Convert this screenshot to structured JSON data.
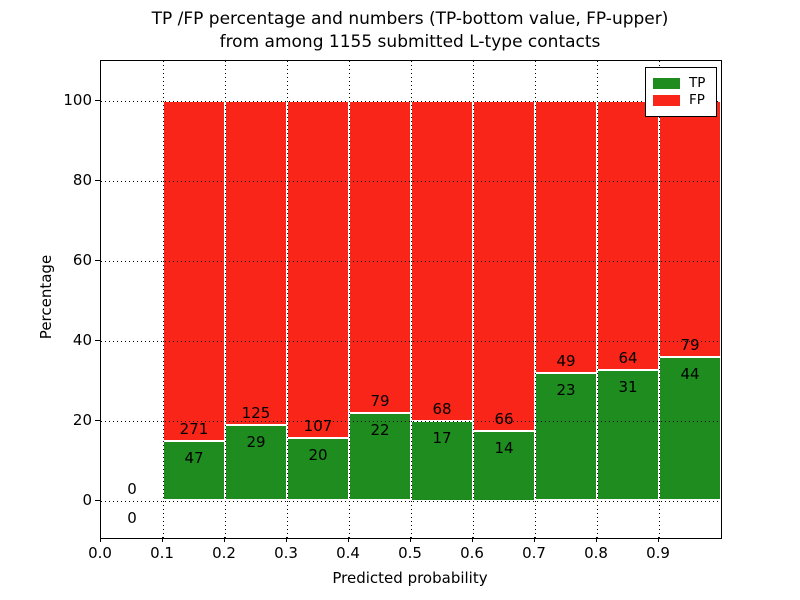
{
  "title": {
    "line1": "TP /FP percentage and numbers (TP-bottom value, FP-upper)",
    "line2": "from among 1155 submitted L-type contacts"
  },
  "axes": {
    "xlabel": "Predicted probability",
    "ylabel": "Percentage",
    "xtick_labels": [
      "0.0",
      "0.1",
      "0.2",
      "0.3",
      "0.4",
      "0.5",
      "0.6",
      "0.7",
      "0.8",
      "0.9"
    ],
    "ytick_labels": [
      "0",
      "20",
      "40",
      "60",
      "80",
      "100"
    ]
  },
  "legend": {
    "items": [
      {
        "label": "TP",
        "color": "#1e8c1e"
      },
      {
        "label": "FP",
        "color": "#f92518"
      }
    ],
    "position": "upper right"
  },
  "colors": {
    "tp": "#1e8c1e",
    "fp": "#f92518",
    "grid": "#000000",
    "bar_edge": "#ffffff",
    "text": "#000000"
  },
  "chart_data": {
    "type": "bar",
    "stacked": true,
    "normalized": "each non-empty bin stacks TP%+FP% to 100",
    "title": "TP /FP percentage and numbers (TP-bottom value, FP-upper) from among 1155 submitted L-type contacts",
    "xlabel": "Predicted probability",
    "ylabel": "Percentage",
    "xlim": [
      0.0,
      1.0
    ],
    "ylim": [
      -10,
      110
    ],
    "xticks": [
      0.0,
      0.1,
      0.2,
      0.3,
      0.4,
      0.5,
      0.6,
      0.7,
      0.8,
      0.9
    ],
    "yticks": [
      0,
      20,
      40,
      60,
      80,
      100
    ],
    "grid": "dotted",
    "legend_position": "upper right",
    "total_contacts": 1155,
    "bin_width": 0.1,
    "series": [
      {
        "name": "TP",
        "color": "#1e8c1e",
        "position": "bottom"
      },
      {
        "name": "FP",
        "color": "#f92518",
        "position": "top"
      }
    ],
    "bins": [
      {
        "x_start": 0.0,
        "x_end": 0.1,
        "tp_count": 0,
        "fp_count": 0,
        "tp_pct": 0,
        "fp_pct": 0
      },
      {
        "x_start": 0.1,
        "x_end": 0.2,
        "tp_count": 47,
        "fp_count": 271,
        "tp_pct": 14.78,
        "fp_pct": 85.22
      },
      {
        "x_start": 0.2,
        "x_end": 0.3,
        "tp_count": 29,
        "fp_count": 125,
        "tp_pct": 18.83,
        "fp_pct": 81.17
      },
      {
        "x_start": 0.3,
        "x_end": 0.4,
        "tp_count": 20,
        "fp_count": 107,
        "tp_pct": 15.75,
        "fp_pct": 84.25
      },
      {
        "x_start": 0.4,
        "x_end": 0.5,
        "tp_count": 22,
        "fp_count": 79,
        "tp_pct": 21.78,
        "fp_pct": 78.22
      },
      {
        "x_start": 0.5,
        "x_end": 0.6,
        "tp_count": 17,
        "fp_count": 68,
        "tp_pct": 20.0,
        "fp_pct": 80.0
      },
      {
        "x_start": 0.6,
        "x_end": 0.7,
        "tp_count": 14,
        "fp_count": 66,
        "tp_pct": 17.5,
        "fp_pct": 82.5
      },
      {
        "x_start": 0.7,
        "x_end": 0.8,
        "tp_count": 23,
        "fp_count": 49,
        "tp_pct": 31.94,
        "fp_pct": 68.06
      },
      {
        "x_start": 0.8,
        "x_end": 0.9,
        "tp_count": 31,
        "fp_count": 64,
        "tp_pct": 32.63,
        "fp_pct": 67.37
      },
      {
        "x_start": 0.9,
        "x_end": 1.0,
        "tp_count": 44,
        "fp_count": 79,
        "tp_pct": 35.77,
        "fp_pct": 64.23
      }
    ]
  }
}
